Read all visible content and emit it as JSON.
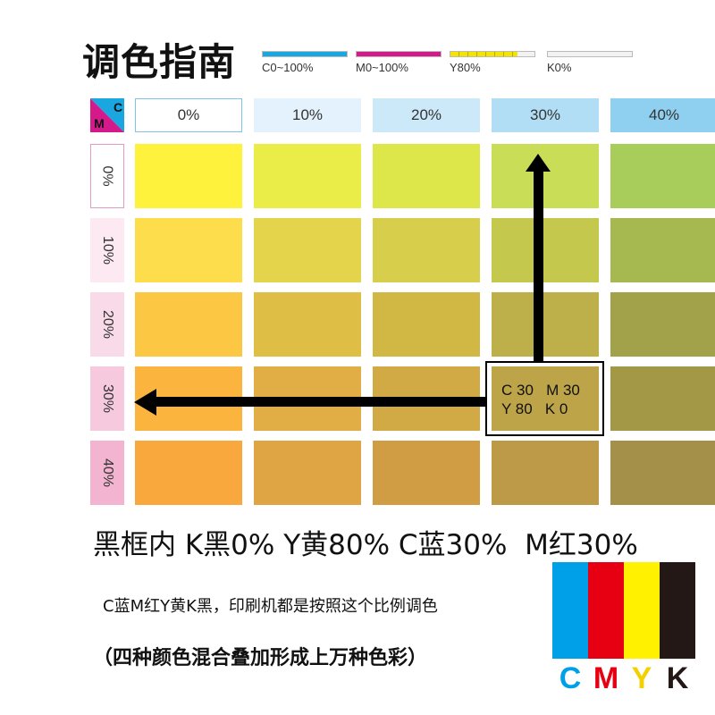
{
  "title": "调色指南",
  "legend": [
    {
      "label": "C0~100%",
      "color": "#1aa7e0",
      "fill": 1.0
    },
    {
      "label": "M0~100%",
      "color": "#d41a8a",
      "fill": 1.0
    },
    {
      "label": "Y80%",
      "color": "#f5e400",
      "fill": 0.8
    },
    {
      "label": "K0%",
      "color": "#444444",
      "fill": 0.0
    }
  ],
  "corner": {
    "c_label": "C",
    "m_label": "M",
    "c_color": "#1aa7e0",
    "m_color": "#d41a8a"
  },
  "chart_data": {
    "type": "heatmap",
    "x_axis_name": "C",
    "y_axis_name": "M",
    "columns": [
      "0%",
      "10%",
      "20%",
      "30%",
      "40%"
    ],
    "rows": [
      "0%",
      "10%",
      "20%",
      "30%",
      "40%"
    ],
    "column_header_colors": [
      "#ffffff",
      "#e3f2fc",
      "#cce9f9",
      "#b1def5",
      "#8fd0f0"
    ],
    "row_header_colors": [
      "#ffffff",
      "#fce9f1",
      "#f9dae8",
      "#f6c9de",
      "#f3b4d2"
    ],
    "fixed": {
      "Y": "80%",
      "K": "0%"
    },
    "cells": [
      [
        "#fff23d",
        "#eaec48",
        "#dee74a",
        "#c9de56",
        "#a9cd5a"
      ],
      [
        "#fddd4c",
        "#e3d44c",
        "#d7cf4b",
        "#c4c84c",
        "#a6b850"
      ],
      [
        "#fcc843",
        "#dfbe45",
        "#d1b845",
        "#bdb04a",
        "#a2a24a"
      ],
      [
        "#fbb43d",
        "#e0ae45",
        "#d1a945",
        "#bda448",
        "#a39845"
      ],
      [
        "#f8a83c",
        "#dfa444",
        "#d09d45",
        "#bc9a48",
        "#a59049"
      ]
    ],
    "highlight": {
      "row": 3,
      "col": 3
    }
  },
  "callout": {
    "line1": "C 30   M 30",
    "line2": "Y 80   K 0"
  },
  "summary": "黑框内 K黑0% Y黄80% C蓝30%  M红30%",
  "note1": "C蓝M红Y黄K黑，印刷机都是按照这个比例调色",
  "note2": "（四种颜色混合叠加形成上万种色彩）",
  "cmyk": [
    {
      "letter": "C",
      "color": "#00a0e9"
    },
    {
      "letter": "M",
      "color": "#e60012"
    },
    {
      "letter": "Y",
      "color": "#fff100"
    },
    {
      "letter": "K",
      "color": "#231815"
    }
  ],
  "cmyk_letter_colors": [
    "#00a0e9",
    "#e60012",
    "#f4d000",
    "#231815"
  ]
}
